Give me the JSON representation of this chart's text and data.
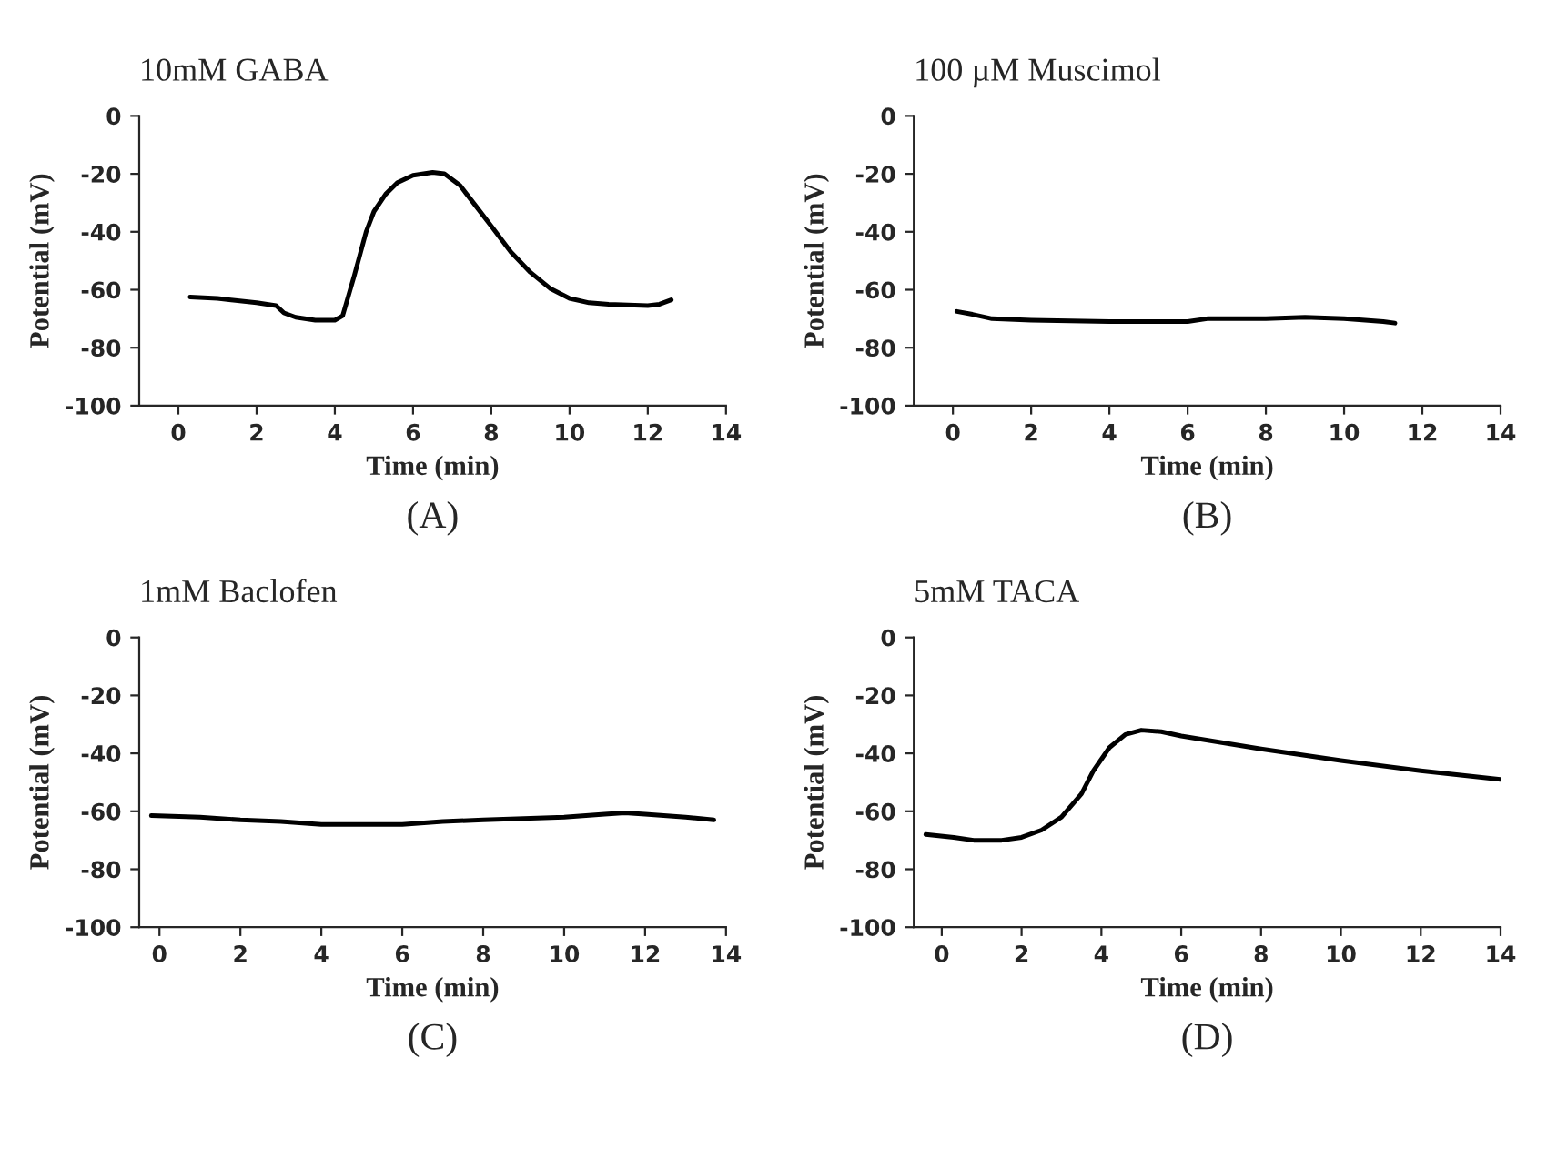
{
  "chart_data": [
    {
      "type": "line",
      "title": "10mM GABA",
      "xlabel": "Time (min)",
      "ylabel": "Potential (mV)",
      "annotations": [
        "(A)"
      ],
      "xlim": [
        -1,
        14
      ],
      "ylim": [
        -100,
        0
      ],
      "xticks": [
        0,
        2,
        4,
        6,
        8,
        10,
        12,
        14
      ],
      "yticks": [
        -100,
        -80,
        -60,
        -40,
        -20,
        0
      ],
      "grid": false,
      "legend": false,
      "series": [
        {
          "color": "#000000",
          "x": [
            0.3,
            1,
            2,
            2.5,
            2.7,
            3,
            3.5,
            4,
            4.2,
            4.5,
            4.8,
            5,
            5.3,
            5.6,
            6,
            6.5,
            6.8,
            7.2,
            7.6,
            8,
            8.5,
            9,
            9.5,
            10,
            10.5,
            11,
            12,
            12.3,
            12.6
          ],
          "values": [
            -62.5,
            -63,
            -64.5,
            -65.5,
            -68,
            -69.5,
            -70.5,
            -70.5,
            -69,
            -55,
            -40,
            -33,
            -27,
            -23,
            -20.5,
            -19.5,
            -20,
            -24,
            -31,
            -38,
            -47,
            -54,
            -59.5,
            -63,
            -64.5,
            -65,
            -65.5,
            -65,
            -63.5
          ]
        }
      ]
    },
    {
      "type": "line",
      "title": "100 µM Muscimol",
      "xlabel": "Time (min)",
      "ylabel": "Potential (mV)",
      "annotations": [
        "(B)"
      ],
      "xlim": [
        -1,
        14
      ],
      "ylim": [
        -100,
        0
      ],
      "xticks": [
        0,
        2,
        4,
        6,
        8,
        10,
        12,
        14
      ],
      "yticks": [
        -100,
        -80,
        -60,
        -40,
        -20,
        0
      ],
      "grid": false,
      "legend": false,
      "series": [
        {
          "color": "#000000",
          "x": [
            0.1,
            0.5,
            1,
            2,
            4,
            6,
            6.5,
            8,
            9,
            10,
            11,
            11.3
          ],
          "values": [
            -67.5,
            -68.5,
            -70,
            -70.5,
            -71,
            -71,
            -70,
            -70,
            -69.5,
            -70,
            -71,
            -71.5
          ]
        }
      ]
    },
    {
      "type": "line",
      "title": "1mM Baclofen",
      "xlabel": "Time (min)",
      "ylabel": "Potential (mV)",
      "annotations": [
        "(C)"
      ],
      "xlim": [
        -0.5,
        14
      ],
      "ylim": [
        -100,
        0
      ],
      "xticks": [
        0,
        2,
        4,
        6,
        8,
        10,
        12,
        14
      ],
      "yticks": [
        -100,
        -80,
        -60,
        -40,
        -20,
        0
      ],
      "grid": false,
      "legend": false,
      "series": [
        {
          "color": "#000000",
          "x": [
            -0.2,
            1,
            2,
            3,
            4,
            5,
            6,
            7,
            8,
            9,
            10,
            11,
            11.5,
            12,
            13,
            13.7
          ],
          "values": [
            -61.5,
            -62,
            -63,
            -63.5,
            -64.5,
            -64.5,
            -64.5,
            -63.5,
            -63,
            -62.5,
            -62,
            -61,
            -60.5,
            -61,
            -62,
            -63
          ]
        }
      ]
    },
    {
      "type": "line",
      "title": "5mM TACA",
      "xlabel": "Time (min)",
      "ylabel": "Potential (mV)",
      "annotations": [
        "(D)"
      ],
      "xlim": [
        -0.7,
        14
      ],
      "ylim": [
        -100,
        0
      ],
      "xticks": [
        0,
        2,
        4,
        6,
        8,
        10,
        12,
        14
      ],
      "yticks": [
        -100,
        -80,
        -60,
        -40,
        -20,
        0
      ],
      "grid": false,
      "legend": false,
      "series": [
        {
          "color": "#000000",
          "x": [
            -0.4,
            0.3,
            0.8,
            1.5,
            2,
            2.5,
            3,
            3.5,
            3.8,
            4.2,
            4.6,
            5,
            5.5,
            6,
            8,
            10,
            12,
            13,
            14
          ],
          "values": [
            -68,
            -69,
            -70,
            -70,
            -69,
            -66.5,
            -62,
            -54,
            -46,
            -38,
            -33.5,
            -32,
            -32.5,
            -34,
            -38.5,
            -42.5,
            -46,
            -47.5,
            -49
          ]
        }
      ]
    }
  ]
}
